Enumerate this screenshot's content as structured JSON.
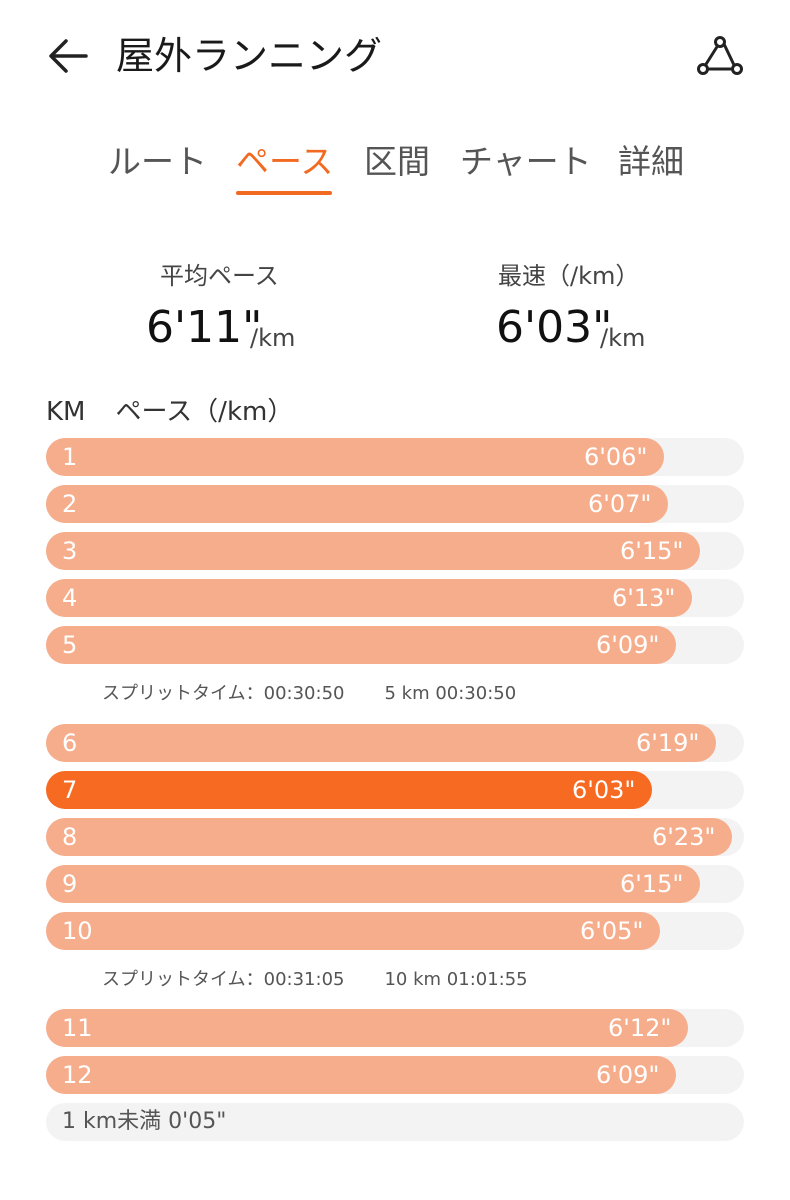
{
  "header": {
    "back_icon": "arrow-left-icon",
    "title": "屋外ランニング",
    "share_icon": "share-route-icon"
  },
  "tabs": [
    {
      "label": "ルート"
    },
    {
      "label": "ペース",
      "active": true
    },
    {
      "label": "区間"
    },
    {
      "label": "チャート"
    },
    {
      "label": "詳細"
    }
  ],
  "summary": {
    "avg_label": "平均ペース",
    "avg_value": "6'11\"",
    "avg_unit": "/km",
    "fastest_label": "最速（/km）",
    "fastest_value": "6'03\"",
    "fastest_unit": "/km"
  },
  "columns": {
    "km": "KM",
    "pace": "ペース（/km）"
  },
  "colors": {
    "bar": "#f6ad8c",
    "fastest_bar": "#f76a22",
    "track": "#f3f3f3",
    "accent": "#f26a21"
  },
  "splits": [
    {
      "km": "1",
      "pace": "6'06\"",
      "seconds": 366
    },
    {
      "km": "2",
      "pace": "6'07\"",
      "seconds": 367
    },
    {
      "km": "3",
      "pace": "6'15\"",
      "seconds": 375
    },
    {
      "km": "4",
      "pace": "6'13\"",
      "seconds": 373
    },
    {
      "km": "5",
      "pace": "6'09\"",
      "seconds": 369
    },
    {
      "km": "6",
      "pace": "6'19\"",
      "seconds": 379
    },
    {
      "km": "7",
      "pace": "6'03\"",
      "seconds": 363,
      "fastest": true
    },
    {
      "km": "8",
      "pace": "6'23\"",
      "seconds": 383
    },
    {
      "km": "9",
      "pace": "6'15\"",
      "seconds": 375
    },
    {
      "km": "10",
      "pace": "6'05\"",
      "seconds": 365
    },
    {
      "km": "11",
      "pace": "6'12\"",
      "seconds": 372
    },
    {
      "km": "12",
      "pace": "6'09\"",
      "seconds": 369
    }
  ],
  "split_times": [
    {
      "label": "スプリットタイム：00:30:50",
      "total": "5 km 00:30:50"
    },
    {
      "label": "スプリットタイム：00:31:05",
      "total": "10 km 01:01:55"
    }
  ],
  "remainder": "1 km未満 0'05\""
}
